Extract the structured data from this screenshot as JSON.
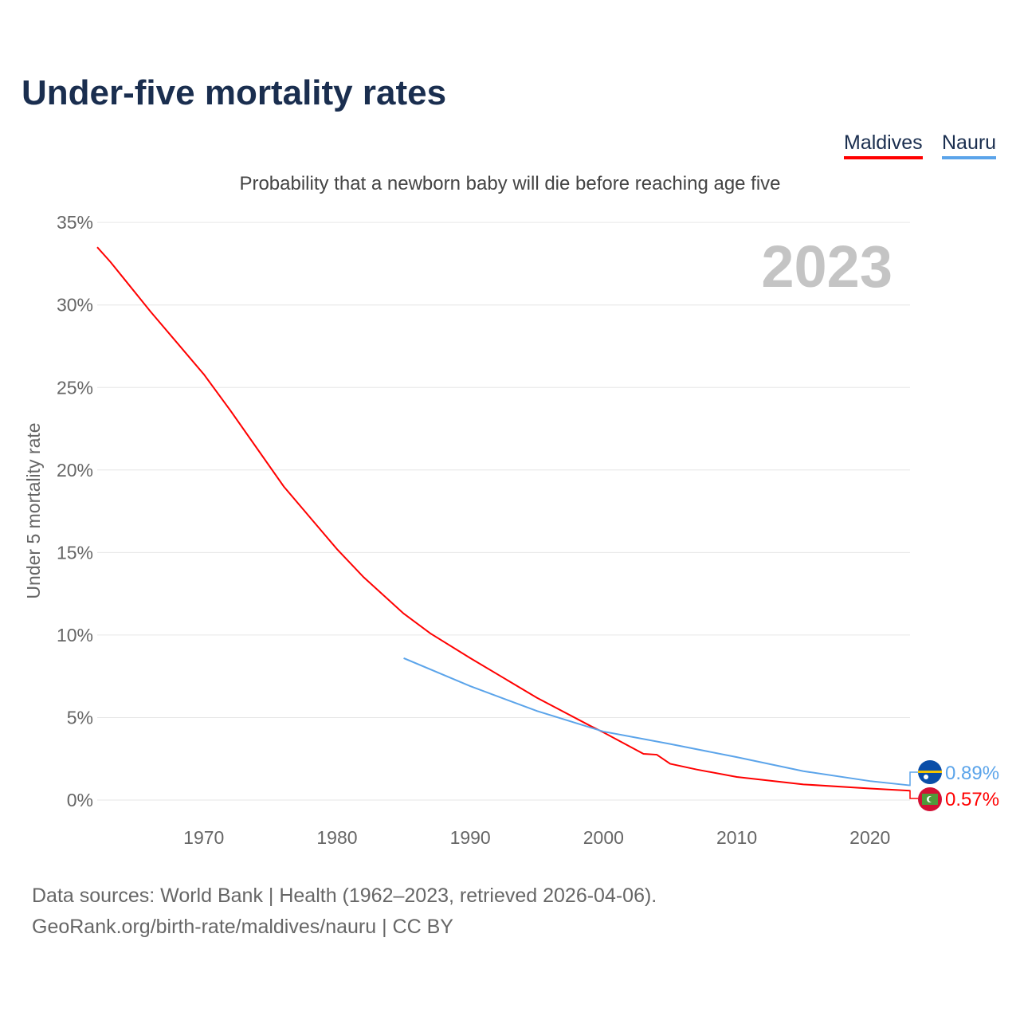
{
  "chart_data": {
    "type": "line",
    "title": "Under-five mortality rates",
    "subtitle": "Probability that a newborn baby will die before reaching age five",
    "ylabel": "Under 5 mortality rate",
    "xlabel": "",
    "year_label": "2023",
    "ylim": [
      0,
      35
    ],
    "xlim": [
      1962,
      2023
    ],
    "yticks": [
      "0%",
      "5%",
      "10%",
      "15%",
      "20%",
      "25%",
      "30%",
      "35%"
    ],
    "xticks": [
      "1970",
      "1980",
      "1990",
      "2000",
      "2010",
      "2020"
    ],
    "grid": true,
    "legend": "top-right",
    "series": [
      {
        "name": "Maldives",
        "color": "#ff0000",
        "end_label": "0.57%",
        "x": [
          1962,
          1963,
          1964,
          1966,
          1968,
          1970,
          1972,
          1974,
          1976,
          1978,
          1980,
          1982,
          1985,
          1987,
          1990,
          1995,
          1999,
          2000,
          2003,
          2004,
          2005,
          2007,
          2010,
          2015,
          2020,
          2023
        ],
        "y": [
          33.5,
          32.6,
          31.6,
          29.6,
          27.7,
          25.8,
          23.6,
          21.3,
          19.0,
          17.1,
          15.2,
          13.5,
          11.3,
          10.1,
          8.6,
          6.2,
          4.5,
          4.1,
          2.8,
          2.75,
          2.2,
          1.85,
          1.4,
          0.95,
          0.7,
          0.57
        ]
      },
      {
        "name": "Nauru",
        "color": "#5ba4ea",
        "end_label": "0.89%",
        "x": [
          1985,
          1990,
          1995,
          2000,
          2005,
          2010,
          2015,
          2020,
          2023
        ],
        "y": [
          8.6,
          6.9,
          5.4,
          4.15,
          3.4,
          2.6,
          1.75,
          1.15,
          0.89
        ]
      }
    ]
  },
  "footer": {
    "line1": "Data sources: World Bank | Health (1962–2023, retrieved 2026-04-06).",
    "line2": "GeoRank.org/birth-rate/maldives/nauru | CC BY"
  }
}
